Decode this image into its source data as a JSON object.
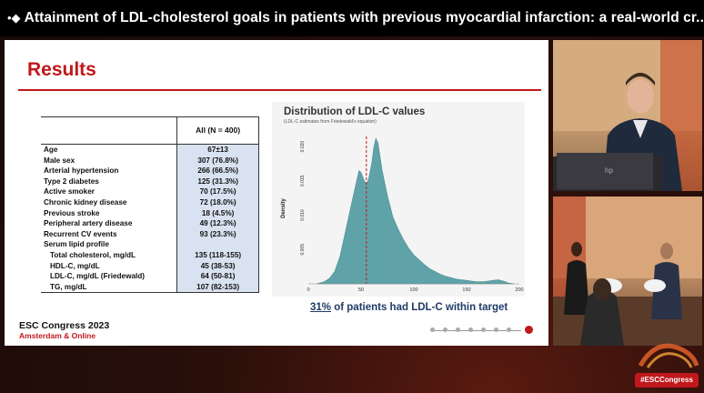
{
  "header": {
    "title": "Attainment of LDL-cholesterol goals in patients with previous myocardial infarction: a real-world cr..."
  },
  "slide": {
    "heading": "Results",
    "table": {
      "col_header": "All (N = 400)",
      "rows": [
        {
          "label": "Age",
          "value": "67±13",
          "indent": false
        },
        {
          "label": "Male sex",
          "value": "307 (76.8%)",
          "indent": false
        },
        {
          "label": "Arterial hypertension",
          "value": "266 (66.5%)",
          "indent": false
        },
        {
          "label": "Type 2 diabetes",
          "value": "125 (31.3%)",
          "indent": false
        },
        {
          "label": "Active smoker",
          "value": "70 (17.5%)",
          "indent": false
        },
        {
          "label": "Chronic kidney disease",
          "value": "72 (18.0%)",
          "indent": false
        },
        {
          "label": "Previous stroke",
          "value": "18 (4.5%)",
          "indent": false
        },
        {
          "label": "Peripheral artery disease",
          "value": "49 (12.3%)",
          "indent": false
        },
        {
          "label": "Recurrent CV events",
          "value": "93 (23.3%)",
          "indent": false
        },
        {
          "label": "Serum lipid profile",
          "value": "",
          "indent": false
        },
        {
          "label": "Total cholesterol, mg/dL",
          "value": "135 (118-155)",
          "indent": true
        },
        {
          "label": "HDL-C, mg/dL",
          "value": "45 (38-53)",
          "indent": true
        },
        {
          "label": "LDL-C, mg/dL (Friedewald)",
          "value": "64 (50-81)",
          "indent": true
        },
        {
          "label": "TG, mg/dL",
          "value": "107 (82-153)",
          "indent": true
        }
      ]
    },
    "target_pct": "31%",
    "target_text": " of patients had LDL-C within target",
    "footer": {
      "line1": "ESC Congress 2023",
      "line2": "Amsterdam & Online"
    }
  },
  "chart_data": {
    "type": "area",
    "title": "Distribution of LDL-C values",
    "subtitle": "(LDL-C estimates from Friedewald's equation)",
    "xlabel": "LDL-C (mg/dL)",
    "ylabel": "Density",
    "xlim": [
      0,
      200
    ],
    "ylim": [
      0,
      0.022
    ],
    "xticks": [
      0,
      50,
      100,
      150,
      200
    ],
    "yticks": [
      0.005,
      0.01,
      0.015,
      0.02
    ],
    "ytick_labels": [
      "0.005",
      "0.010",
      "0.015",
      "0.020"
    ],
    "reference_line_x": 55,
    "fill_color": "#5fa3a8",
    "ref_color": "#c0181c",
    "x": [
      8,
      15,
      20,
      25,
      30,
      35,
      40,
      45,
      48,
      50,
      53,
      55,
      57,
      60,
      62,
      64,
      66,
      68,
      70,
      72,
      75,
      78,
      80,
      85,
      90,
      95,
      100,
      105,
      110,
      115,
      120,
      125,
      130,
      135,
      140,
      145,
      150,
      155,
      160,
      165,
      170,
      175,
      180,
      185,
      190,
      195
    ],
    "y": [
      0.0,
      0.0003,
      0.0008,
      0.0018,
      0.004,
      0.0075,
      0.011,
      0.0145,
      0.0165,
      0.0162,
      0.015,
      0.0145,
      0.0152,
      0.0175,
      0.0198,
      0.0212,
      0.0205,
      0.0185,
      0.0165,
      0.015,
      0.0128,
      0.011,
      0.0098,
      0.008,
      0.0065,
      0.0052,
      0.0042,
      0.0035,
      0.0028,
      0.0022,
      0.0018,
      0.0014,
      0.0011,
      0.0009,
      0.0007,
      0.0006,
      0.0005,
      0.0004,
      0.0003,
      0.0003,
      0.0004,
      0.0005,
      0.0006,
      0.0004,
      0.0001,
      0.0
    ]
  },
  "overlay": {
    "hashtag": "#ESCCongress"
  }
}
